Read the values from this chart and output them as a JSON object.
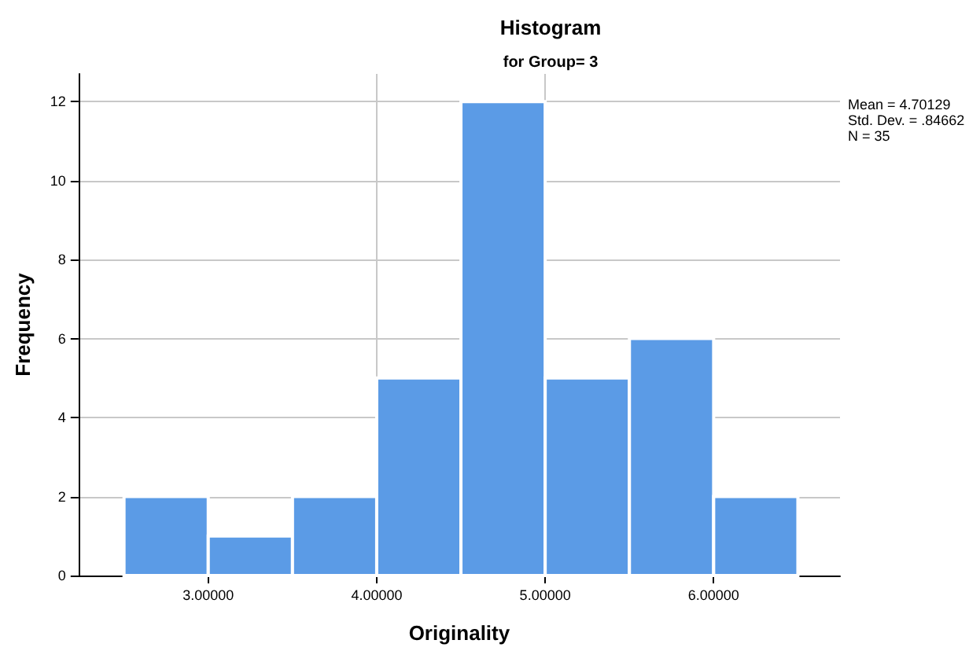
{
  "chart_data": {
    "type": "histogram",
    "title": "Histogram",
    "subtitle": "for Group= 3",
    "xlabel": "Originality",
    "ylabel": "Frequency",
    "bins": [
      2.5,
      3.0,
      3.5,
      4.0,
      4.5,
      5.0,
      5.5,
      6.0,
      6.5
    ],
    "values": [
      2,
      1,
      2,
      5,
      12,
      5,
      6,
      2
    ],
    "color": "#5b9be6",
    "xlim": [
      2.23,
      6.75
    ],
    "xticks": [
      {
        "value": 3,
        "label": "3.00000"
      },
      {
        "value": 4,
        "label": "4.00000"
      },
      {
        "value": 5,
        "label": "5.00000"
      },
      {
        "value": 6,
        "label": "6.00000"
      }
    ],
    "ylim": [
      0,
      12.7
    ],
    "yticks": [
      0,
      2,
      4,
      6,
      8,
      10,
      12
    ],
    "grid": true,
    "annotations": [
      "Mean = 4.70129",
      "Std. Dev. = .84662",
      "N = 35"
    ]
  }
}
